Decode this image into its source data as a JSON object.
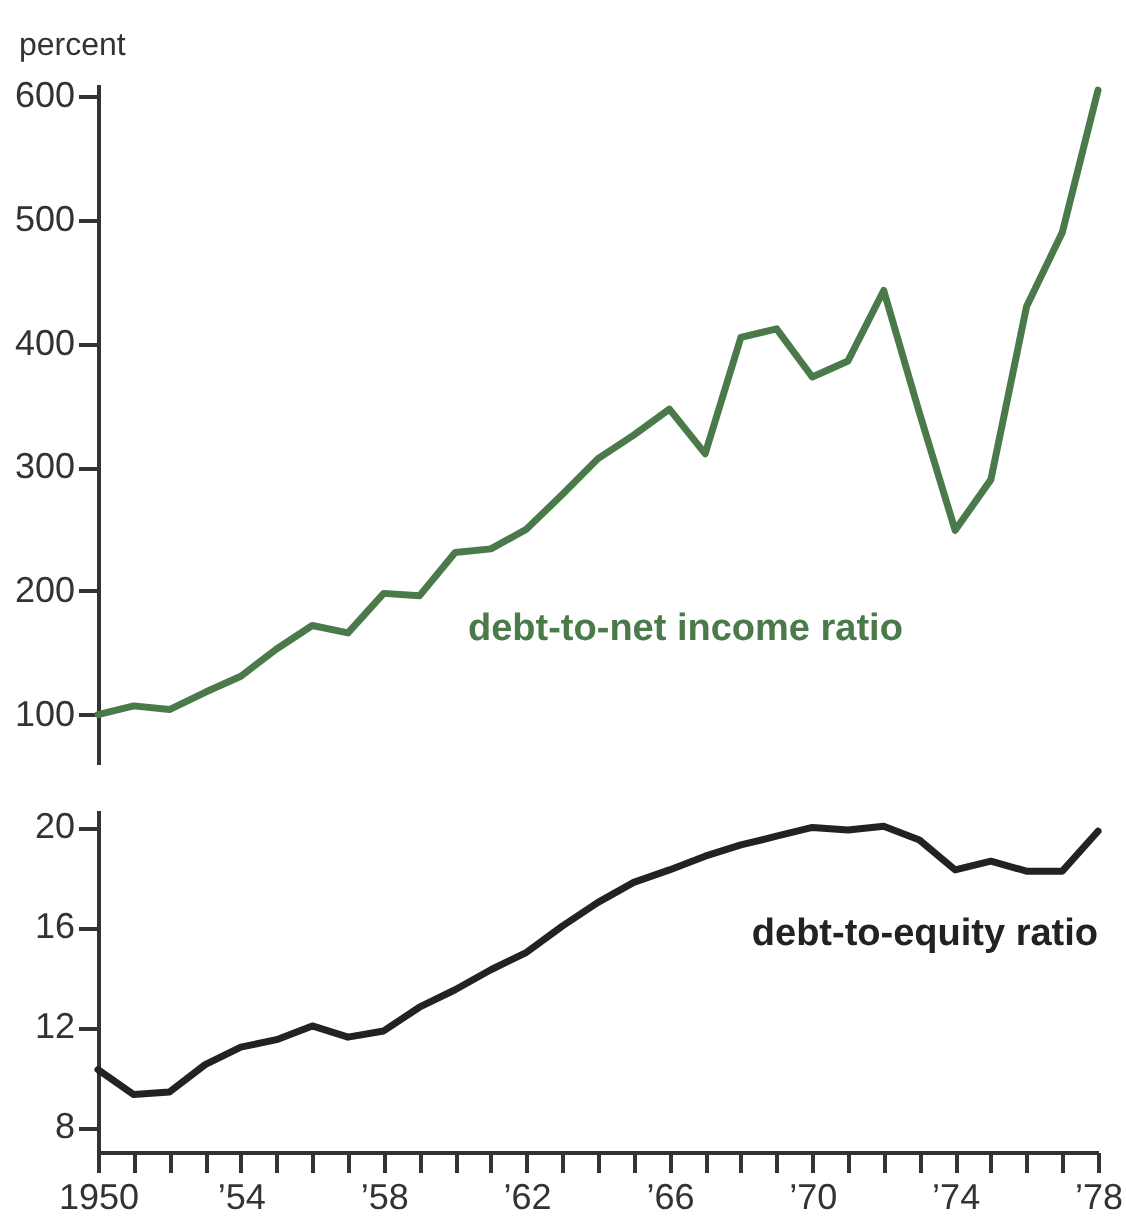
{
  "chart_data": [
    {
      "type": "line",
      "ylabel": "percent",
      "x": [
        1950,
        1951,
        1952,
        1953,
        1954,
        1955,
        1956,
        1957,
        1958,
        1959,
        1960,
        1961,
        1962,
        1963,
        1964,
        1965,
        1966,
        1967,
        1968,
        1969,
        1970,
        1971,
        1972,
        1973,
        1974,
        1975,
        1976,
        1977,
        1978
      ],
      "series": [
        {
          "name": "debt-to-net income ratio",
          "color": "#4a7a4a",
          "values": [
            100,
            107,
            104,
            118,
            131,
            153,
            172,
            166,
            198,
            196,
            231,
            234,
            250,
            278,
            307,
            326,
            347,
            311,
            405,
            412,
            373,
            386,
            443,
            344,
            249,
            290,
            430,
            490,
            605
          ]
        }
      ],
      "xlim": [
        1950,
        1978
      ],
      "ylim": [
        60,
        610
      ],
      "yticks": [
        100,
        200,
        300,
        400,
        500,
        600
      ],
      "tick_labels": "y",
      "legend": false
    },
    {
      "type": "line",
      "x": [
        1950,
        1951,
        1952,
        1953,
        1954,
        1955,
        1956,
        1957,
        1958,
        1959,
        1960,
        1961,
        1962,
        1963,
        1964,
        1965,
        1966,
        1967,
        1968,
        1969,
        1970,
        1971,
        1972,
        1973,
        1974,
        1975,
        1976,
        1977,
        1978
      ],
      "series": [
        {
          "name": "debt-to-equity ratio",
          "color": "#222222",
          "values": [
            10.3,
            9.3,
            9.4,
            10.5,
            11.2,
            11.5,
            12.05,
            11.6,
            11.85,
            12.8,
            13.5,
            14.3,
            15.0,
            16.05,
            17.0,
            17.8,
            18.3,
            18.85,
            19.3,
            19.65,
            20.0,
            19.9,
            20.05,
            19.5,
            18.3,
            18.65,
            18.25,
            18.25,
            19.85
          ]
        }
      ],
      "xlim": [
        1950,
        1978
      ],
      "xticks": [
        1950,
        {
          "value": 1951,
          "label": null
        },
        {
          "value": 1952,
          "label": null
        },
        {
          "value": 1953,
          "label": null
        },
        {
          "value": 1954,
          "label": "’54"
        },
        {
          "value": 1955,
          "label": null
        },
        {
          "value": 1956,
          "label": null
        },
        {
          "value": 1957,
          "label": null
        },
        {
          "value": 1958,
          "label": "’58"
        },
        {
          "value": 1959,
          "label": null
        },
        {
          "value": 1960,
          "label": null
        },
        {
          "value": 1961,
          "label": null
        },
        {
          "value": 1962,
          "label": "’62"
        },
        {
          "value": 1963,
          "label": null
        },
        {
          "value": 1964,
          "label": null
        },
        {
          "value": 1965,
          "label": null
        },
        {
          "value": 1966,
          "label": "’66"
        },
        {
          "value": 1967,
          "label": null
        },
        {
          "value": 1968,
          "label": null
        },
        {
          "value": 1969,
          "label": null
        },
        {
          "value": 1970,
          "label": "’70"
        },
        {
          "value": 1971,
          "label": null
        },
        {
          "value": 1972,
          "label": null
        },
        {
          "value": 1973,
          "label": null
        },
        {
          "value": 1974,
          "label": "’74"
        },
        {
          "value": 1975,
          "label": null
        },
        {
          "value": 1976,
          "label": null
        },
        {
          "value": 1977,
          "label": null
        },
        {
          "value": 1978,
          "label": "’78"
        }
      ],
      "ylim": [
        7,
        20.7
      ],
      "yticks": [
        8,
        12,
        16,
        20
      ],
      "legend": false
    }
  ]
}
